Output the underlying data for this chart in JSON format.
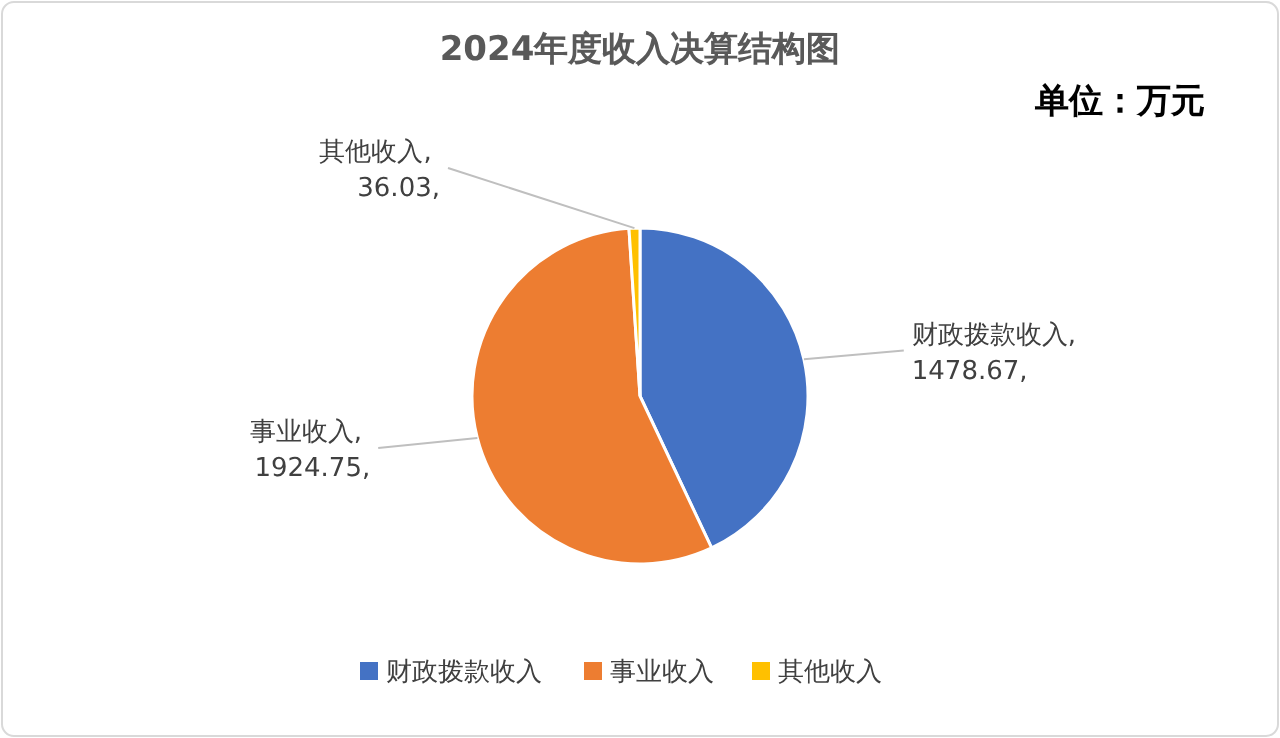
{
  "chart_data": {
    "type": "pie",
    "title": "2024年度收入决算结构图",
    "subtitle": "单位：万元",
    "categories": [
      "财政拨款收入",
      "事业收入",
      "其他收入"
    ],
    "values": [
      1478.67,
      1924.75,
      36.03
    ],
    "colors": [
      "#4472c4",
      "#ed7d31",
      "#ffc000"
    ],
    "value_labels": [
      "财政拨款收入, 1478.67,",
      "事业收入, 1924.75,",
      "其他收入, 36.03,"
    ],
    "legend": "bottom"
  }
}
